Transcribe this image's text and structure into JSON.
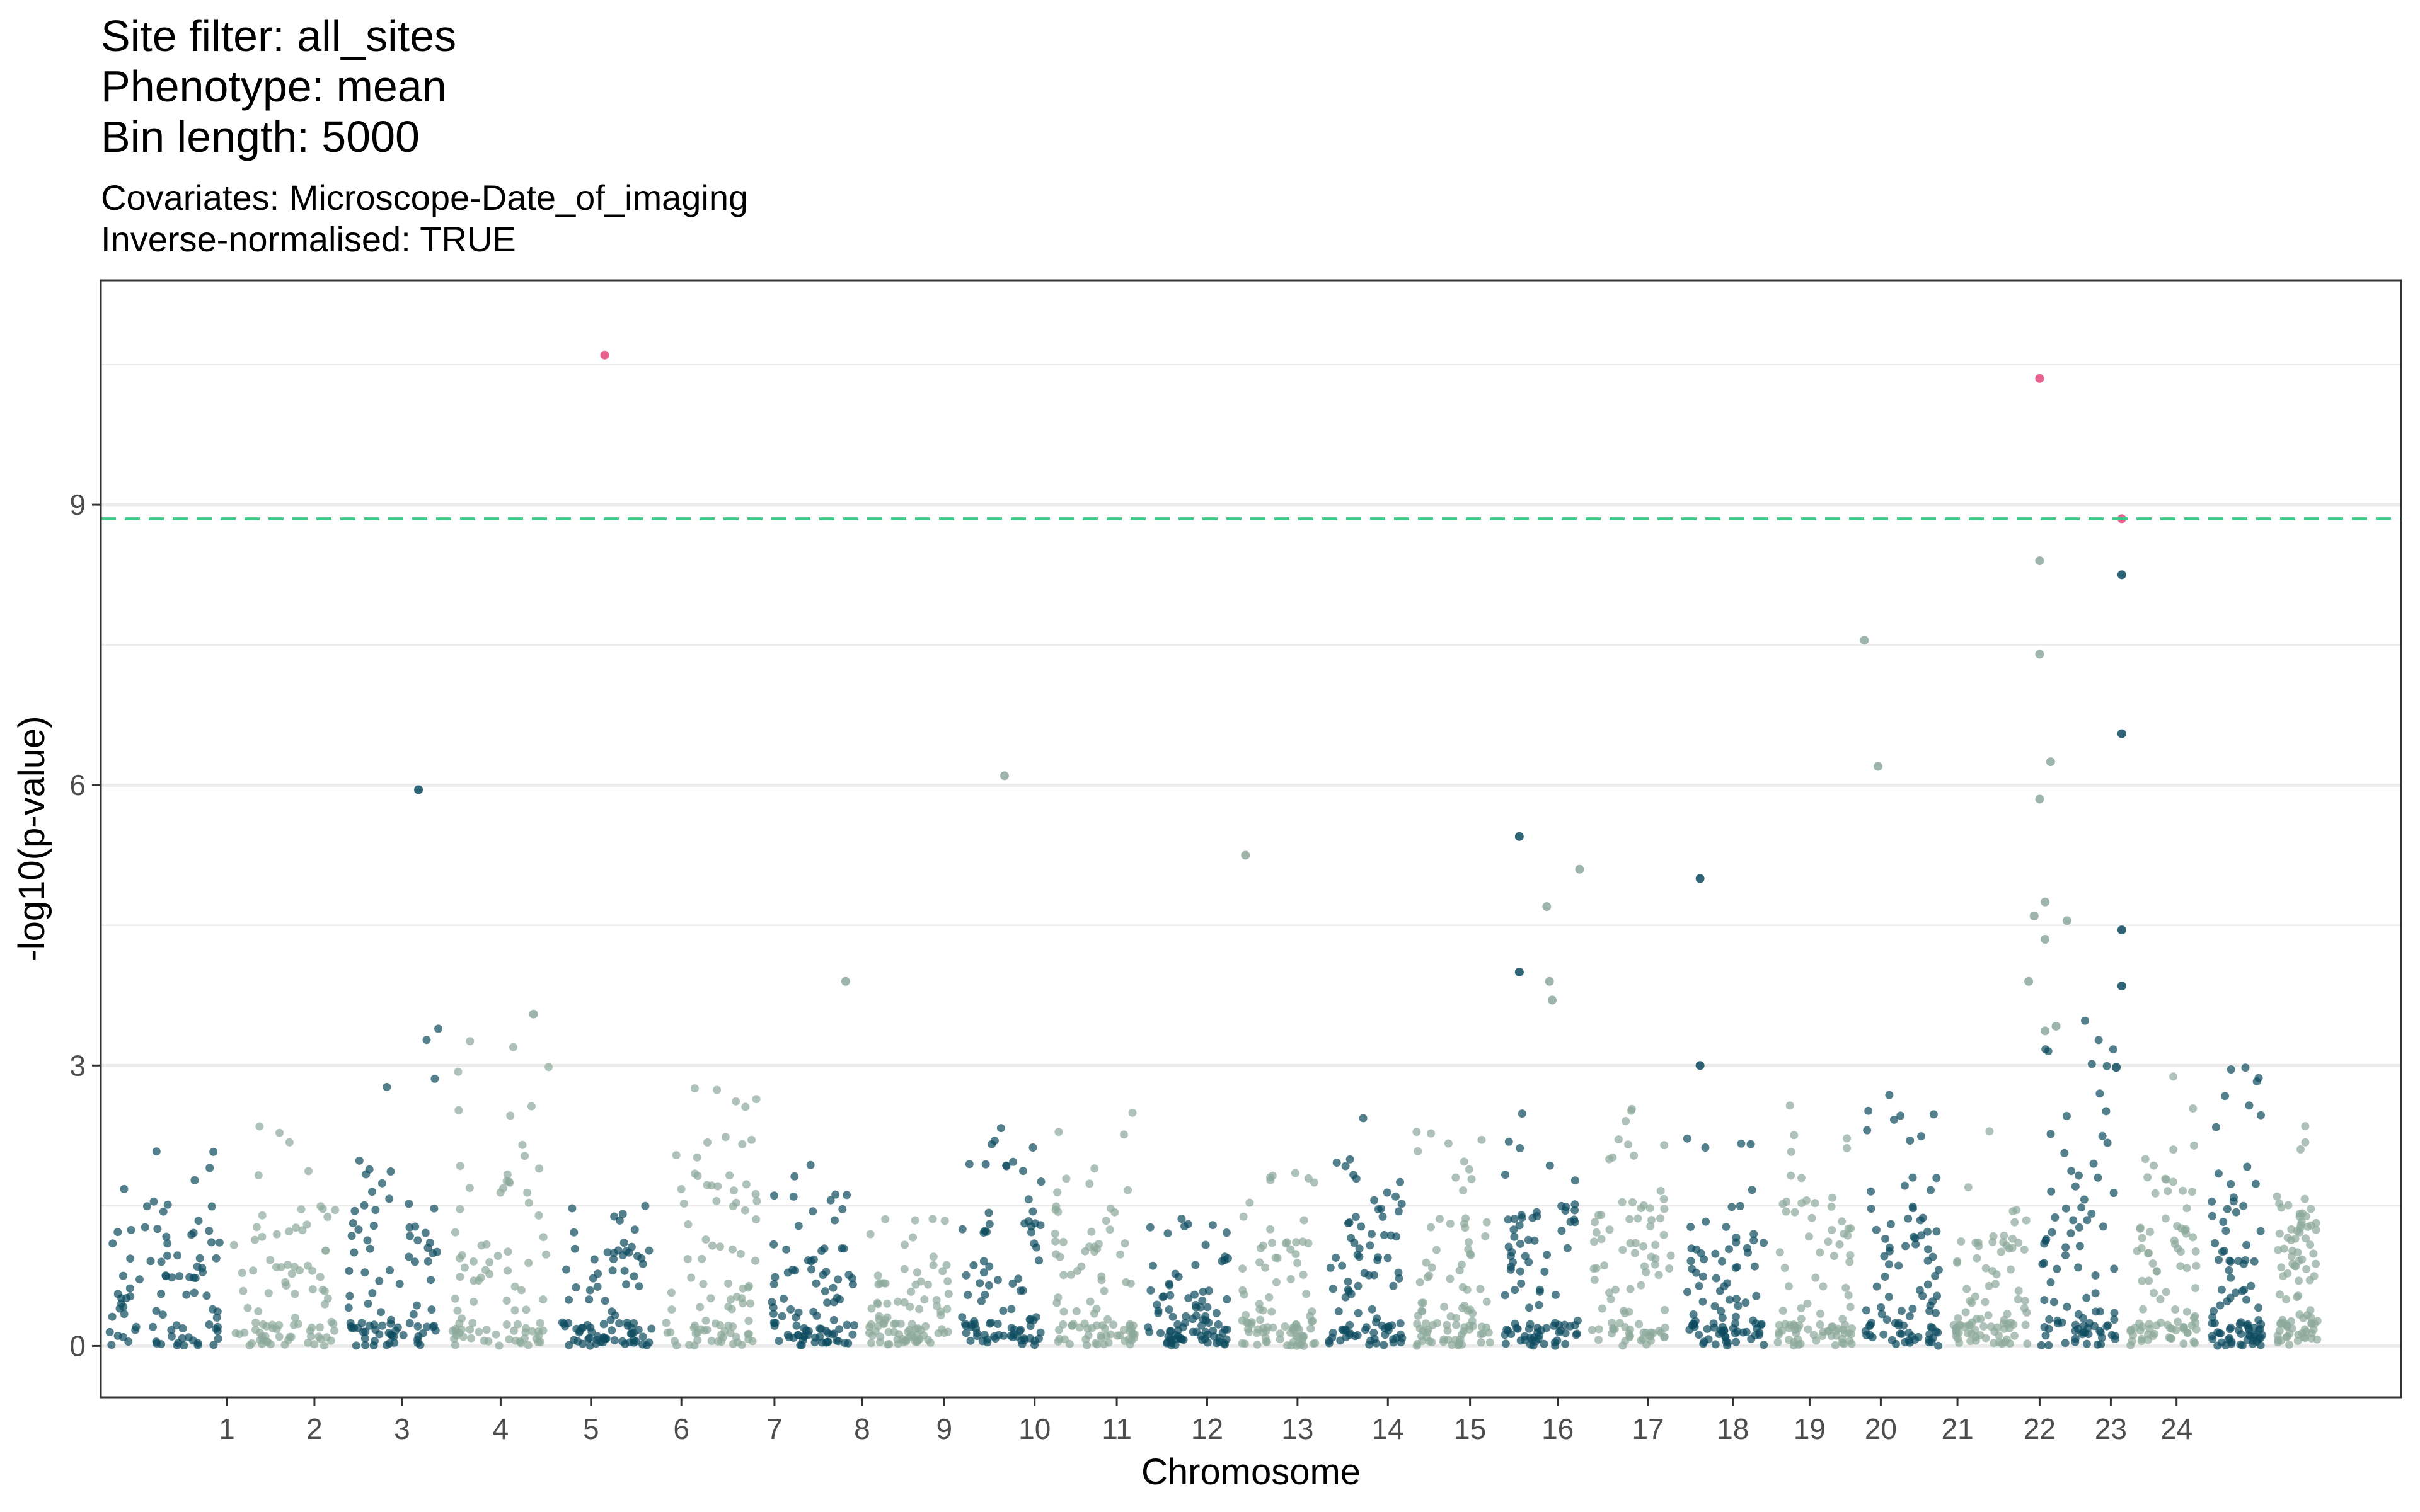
{
  "header": {
    "title_lines": [
      "Site filter: all_sites",
      "Phenotype: mean",
      "Bin length: 5000"
    ],
    "subtitle_lines": [
      "Covariates: Microscope-Date_of_imaging",
      "Inverse-normalised: TRUE"
    ]
  },
  "chart_data": {
    "type": "scatter",
    "xlabel": "Chromosome",
    "ylabel": "-log10(p-value)",
    "ylim": [
      -0.55,
      11.4
    ],
    "y_ticks": [
      0,
      3,
      6,
      9
    ],
    "grid": true,
    "legend": "none",
    "threshold": {
      "value": 8.85,
      "color": "#3dcc8a",
      "style": "dashed"
    },
    "colors": {
      "odd": "#0b4a5e",
      "even": "#8ca89b",
      "significant": "#e0457b"
    },
    "chromosomes": [
      {
        "name": "1",
        "start": 0.0,
        "end": 2.3,
        "max": 2.1
      },
      {
        "name": "2",
        "start": 2.3,
        "end": 4.4,
        "max": 2.5
      },
      {
        "name": "3",
        "start": 4.4,
        "end": 6.3,
        "max": 3.4
      },
      {
        "name": "4",
        "start": 6.3,
        "end": 8.3,
        "max": 3.3
      },
      {
        "name": "5",
        "start": 8.3,
        "end": 10.2,
        "max": 1.8
      },
      {
        "name": "6",
        "start": 10.2,
        "end": 12.1,
        "max": 2.9
      },
      {
        "name": "7",
        "start": 12.1,
        "end": 13.9,
        "max": 2.0
      },
      {
        "name": "8",
        "start": 13.9,
        "end": 15.6,
        "max": 1.5
      },
      {
        "name": "9",
        "start": 15.6,
        "end": 17.3,
        "max": 2.4
      },
      {
        "name": "10",
        "start": 17.3,
        "end": 19.0,
        "max": 2.5
      },
      {
        "name": "11",
        "start": 19.0,
        "end": 20.7,
        "max": 1.6
      },
      {
        "name": "12",
        "start": 20.7,
        "end": 22.3,
        "max": 1.9
      },
      {
        "name": "13",
        "start": 22.3,
        "end": 23.9,
        "max": 3.4
      },
      {
        "name": "14",
        "start": 23.9,
        "end": 25.5,
        "max": 2.3
      },
      {
        "name": "15",
        "start": 25.5,
        "end": 27.1,
        "max": 2.6
      },
      {
        "name": "16",
        "start": 27.1,
        "end": 28.8,
        "max": 2.7
      },
      {
        "name": "17",
        "start": 28.8,
        "end": 30.5,
        "max": 2.5
      },
      {
        "name": "18",
        "start": 30.5,
        "end": 32.1,
        "max": 2.6
      },
      {
        "name": "19",
        "start": 32.1,
        "end": 33.7,
        "max": 2.8
      },
      {
        "name": "20",
        "start": 33.7,
        "end": 35.3,
        "max": 2.3
      },
      {
        "name": "21",
        "start": 35.3,
        "end": 36.9,
        "max": 3.5
      },
      {
        "name": "22",
        "start": 36.9,
        "end": 38.4,
        "max": 3.0
      },
      {
        "name": "23",
        "start": 38.4,
        "end": 39.6,
        "max": 3.0
      },
      {
        "name": "24",
        "start": 39.6,
        "end": 40.6,
        "max": 2.6
      }
    ],
    "x_ticks": [
      {
        "label": "1",
        "x": 2.3
      },
      {
        "label": "2",
        "x": 3.9
      },
      {
        "label": "3",
        "x": 5.5
      },
      {
        "label": "4",
        "x": 7.3
      },
      {
        "label": "5",
        "x": 8.95
      },
      {
        "label": "6",
        "x": 10.6
      },
      {
        "label": "7",
        "x": 12.3
      },
      {
        "label": "8",
        "x": 13.9
      },
      {
        "label": "9",
        "x": 15.4
      },
      {
        "label": "10",
        "x": 17.05
      },
      {
        "label": "11",
        "x": 18.55
      },
      {
        "label": "12",
        "x": 20.2
      },
      {
        "label": "13",
        "x": 21.85
      },
      {
        "label": "14",
        "x": 23.5
      },
      {
        "label": "15",
        "x": 25.0
      },
      {
        "label": "16",
        "x": 26.6
      },
      {
        "label": "17",
        "x": 28.25
      },
      {
        "label": "18",
        "x": 29.8
      },
      {
        "label": "19",
        "x": 31.2
      },
      {
        "label": "20",
        "x": 32.5
      },
      {
        "label": "21",
        "x": 33.9
      },
      {
        "label": "22",
        "x": 35.4
      },
      {
        "label": "23",
        "x": 36.7
      },
      {
        "label": "24",
        "x": 37.9
      }
    ],
    "highlight_points": [
      {
        "x": 9.2,
        "y": 10.6,
        "group": "significant"
      },
      {
        "x": 35.4,
        "y": 10.35,
        "group": "significant"
      },
      {
        "x": 36.9,
        "y": 8.85,
        "group": "significant"
      },
      {
        "x": 35.4,
        "y": 8.4,
        "group": "even"
      },
      {
        "x": 36.9,
        "y": 8.25,
        "group": "odd"
      },
      {
        "x": 32.2,
        "y": 7.55,
        "group": "even"
      },
      {
        "x": 35.4,
        "y": 7.4,
        "group": "even"
      },
      {
        "x": 36.9,
        "y": 6.55,
        "group": "odd"
      },
      {
        "x": 35.6,
        "y": 6.25,
        "group": "even"
      },
      {
        "x": 32.45,
        "y": 6.2,
        "group": "even"
      },
      {
        "x": 16.5,
        "y": 6.1,
        "group": "even"
      },
      {
        "x": 5.8,
        "y": 5.95,
        "group": "odd"
      },
      {
        "x": 35.4,
        "y": 5.85,
        "group": "even"
      },
      {
        "x": 25.9,
        "y": 5.45,
        "group": "odd"
      },
      {
        "x": 20.9,
        "y": 5.25,
        "group": "even"
      },
      {
        "x": 27.0,
        "y": 5.1,
        "group": "even"
      },
      {
        "x": 29.2,
        "y": 5.0,
        "group": "odd"
      },
      {
        "x": 35.5,
        "y": 4.75,
        "group": "even"
      },
      {
        "x": 26.4,
        "y": 4.7,
        "group": "even"
      },
      {
        "x": 35.9,
        "y": 4.55,
        "group": "even"
      },
      {
        "x": 35.3,
        "y": 4.6,
        "group": "even"
      },
      {
        "x": 36.9,
        "y": 4.45,
        "group": "odd"
      },
      {
        "x": 35.5,
        "y": 4.35,
        "group": "even"
      },
      {
        "x": 25.9,
        "y": 4.0,
        "group": "odd"
      },
      {
        "x": 35.2,
        "y": 3.9,
        "group": "even"
      },
      {
        "x": 13.6,
        "y": 3.9,
        "group": "even"
      },
      {
        "x": 26.45,
        "y": 3.9,
        "group": "even"
      },
      {
        "x": 36.9,
        "y": 3.85,
        "group": "odd"
      },
      {
        "x": 26.5,
        "y": 3.7,
        "group": "even"
      },
      {
        "x": 7.9,
        "y": 3.55,
        "group": "even"
      },
      {
        "x": 35.7,
        "y": 3.42,
        "group": "even"
      },
      {
        "x": 35.5,
        "y": 3.37,
        "group": "even"
      },
      {
        "x": 29.2,
        "y": 3.0,
        "group": "odd"
      },
      {
        "x": 36.8,
        "y": 2.98,
        "group": "odd"
      }
    ]
  }
}
